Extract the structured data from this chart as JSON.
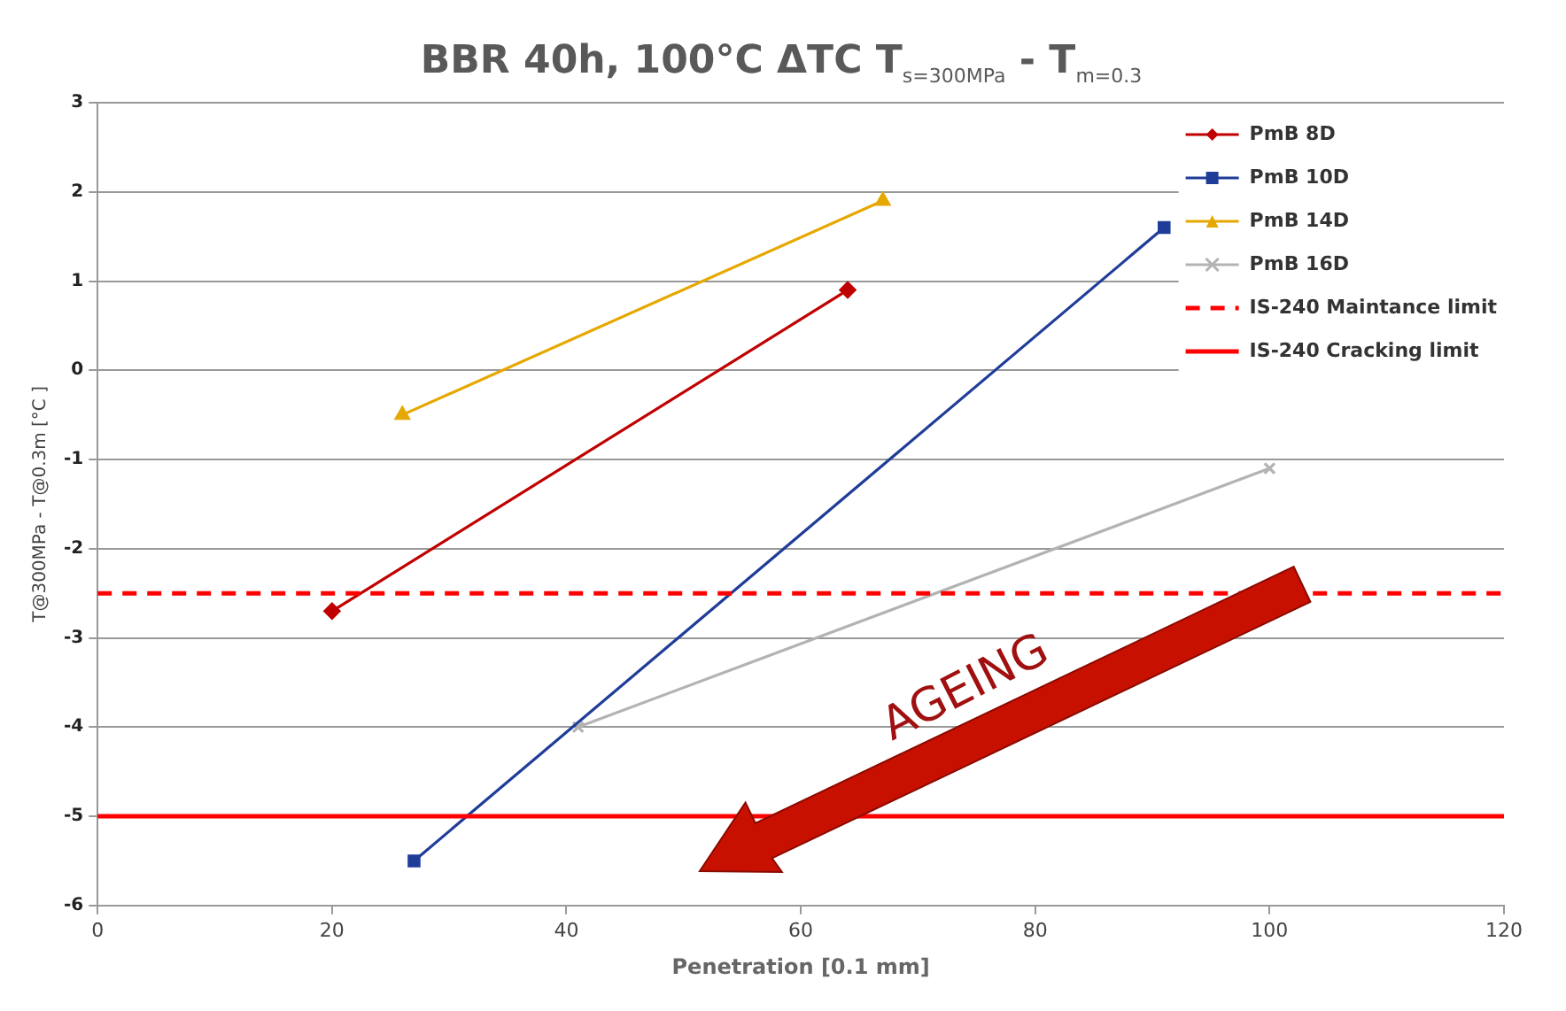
{
  "chart_data": {
    "type": "line",
    "title": "BBR 40h, 100°C ΔTC T$_{s=300MPa}$ - T$_{m=0.3}$",
    "xlabel": "Penetration [0.1 mm]",
    "ylabel": "T@300MPa - T@0.3m [°C ]",
    "series": [
      {
        "name": "PmB 8D",
        "color": "#c00000",
        "marker": "diamond",
        "x": [
          20,
          64
        ],
        "values": [
          -2.7,
          0.9
        ]
      },
      {
        "name": "PmB 10D",
        "color": "#1f3c99",
        "marker": "square",
        "x": [
          27,
          91
        ],
        "values": [
          -5.5,
          1.6
        ]
      },
      {
        "name": "PmB 14D",
        "color": "#e6a800",
        "marker": "triangle",
        "x": [
          26,
          67
        ],
        "values": [
          -0.5,
          1.9
        ]
      },
      {
        "name": "PmB 16D",
        "color": "#b3b3b3",
        "marker": "cross",
        "x": [
          41,
          100
        ],
        "values": [
          -4,
          -1.1
        ]
      }
    ],
    "ref_lines": [
      {
        "axis": "y",
        "value": -2.5,
        "label": "IS-240 Maintance limit",
        "color": "#ff0000",
        "line_style": "dashed"
      },
      {
        "axis": "y",
        "value": -5,
        "label": "IS-240 Cracking limit",
        "color": "#ff0000",
        "line_style": "solid"
      }
    ],
    "annotations": [
      "AGEING"
    ],
    "xlim": [
      0,
      120
    ],
    "xticks": [
      0,
      20,
      40,
      60,
      80,
      100,
      120
    ],
    "ylim": [
      -6,
      3
    ],
    "yticks": [
      -6,
      -5,
      -4,
      -3,
      -2,
      -1,
      0,
      1,
      2,
      3
    ],
    "grid": "y",
    "legend": "top right",
    "line_style": "solid"
  }
}
